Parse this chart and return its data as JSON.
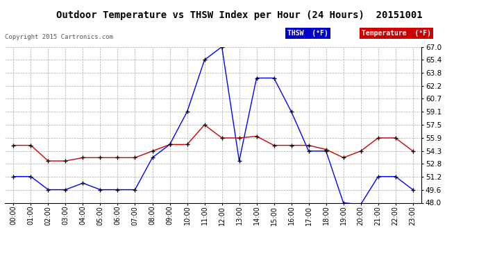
{
  "title": "Outdoor Temperature vs THSW Index per Hour (24 Hours)  20151001",
  "copyright": "Copyright 2015 Cartronics.com",
  "hours": [
    "00:00",
    "01:00",
    "02:00",
    "03:00",
    "04:00",
    "05:00",
    "06:00",
    "07:00",
    "08:00",
    "09:00",
    "10:00",
    "11:00",
    "12:00",
    "13:00",
    "14:00",
    "15:00",
    "16:00",
    "17:00",
    "18:00",
    "19:00",
    "20:00",
    "21:00",
    "22:00",
    "23:00"
  ],
  "thsw": [
    51.2,
    51.2,
    49.6,
    49.6,
    50.4,
    49.6,
    49.6,
    49.6,
    53.5,
    55.1,
    59.1,
    65.4,
    67.0,
    53.1,
    63.2,
    63.2,
    59.1,
    54.3,
    54.3,
    48.0,
    47.8,
    51.2,
    51.2,
    49.6
  ],
  "temperature": [
    55.0,
    55.0,
    53.1,
    53.1,
    53.5,
    53.5,
    53.5,
    53.5,
    54.3,
    55.1,
    55.1,
    57.5,
    55.9,
    55.9,
    56.1,
    55.0,
    55.0,
    55.0,
    54.5,
    53.5,
    54.3,
    55.9,
    55.9,
    54.3
  ],
  "thsw_color": "#0000ff",
  "temp_color": "#cc0000",
  "bg_color": "#ffffff",
  "grid_color": "#aaaaaa",
  "ylim": [
    48.0,
    67.0
  ],
  "yticks": [
    48.0,
    49.6,
    51.2,
    52.8,
    54.3,
    55.9,
    57.5,
    59.1,
    60.7,
    62.2,
    63.8,
    65.4,
    67.0
  ],
  "legend_thsw_bg": "#0000cc",
  "legend_temp_bg": "#cc0000",
  "marker": "+",
  "marker_color": "#000000",
  "marker_size": 4
}
